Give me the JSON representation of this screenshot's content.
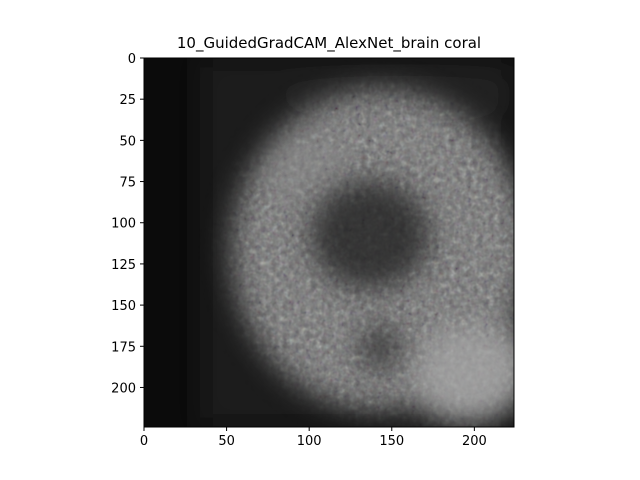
{
  "chart_data": {
    "type": "heatmap",
    "title": "10_GuidedGradCAM_AlexNet_brain coral",
    "xlabel": "",
    "ylabel": "",
    "image_size": [
      224,
      224
    ],
    "xlim": [
      0,
      224
    ],
    "ylim": [
      224,
      0
    ],
    "x_ticks": [
      0,
      50,
      100,
      150,
      200
    ],
    "y_ticks": [
      0,
      25,
      50,
      75,
      100,
      125,
      150,
      175,
      200
    ],
    "grid": false,
    "colors": {
      "background": "#ffffff",
      "image_dark": "#0b0b0b",
      "image_mid": "#3a3a3a",
      "image_light": "#9a9a9a",
      "axis": "#000000"
    }
  }
}
